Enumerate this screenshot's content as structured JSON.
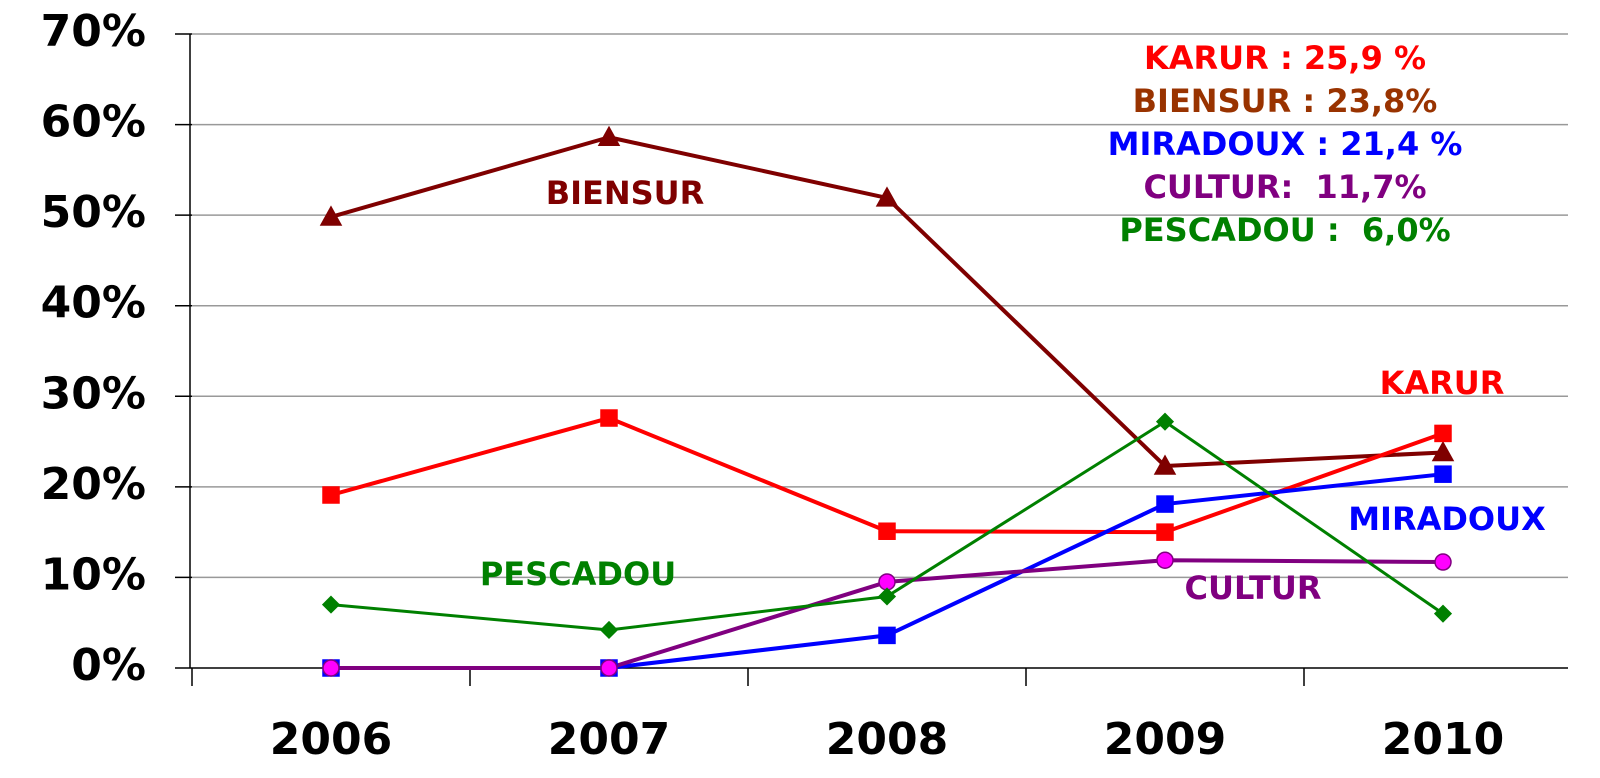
{
  "chart_data": {
    "type": "line",
    "categories": [
      "2006",
      "2007",
      "2008",
      "2009",
      "2010"
    ],
    "series": [
      {
        "name": "BIENSUR",
        "color": "#7f0000",
        "marker": "triangle",
        "marker_color": "#7f0000",
        "values": [
          49.8,
          58.6,
          51.9,
          22.3,
          23.8
        ]
      },
      {
        "name": "KARUR",
        "color": "#ff0000",
        "marker": "square",
        "marker_color": "#ff0000",
        "values": [
          19.1,
          27.6,
          15.1,
          15.0,
          25.9
        ]
      },
      {
        "name": "MIRADOUX",
        "color": "#0000ff",
        "marker": "square",
        "marker_color": "#0000ff",
        "values": [
          0,
          0,
          3.6,
          18.1,
          21.4
        ]
      },
      {
        "name": "CULTUR",
        "color": "#800080",
        "marker": "circle",
        "marker_color": "#ff00ff",
        "values": [
          0,
          0,
          9.5,
          11.9,
          11.7
        ]
      },
      {
        "name": "PESCADOU",
        "color": "#008000",
        "marker": "diamond",
        "marker_color": "#008000",
        "values": [
          7.0,
          4.2,
          7.9,
          27.2,
          6.0
        ]
      }
    ],
    "annotations": [
      {
        "text": "KARUR : 25,9 %",
        "color": "#ff0000"
      },
      {
        "text": "BIENSUR : 23,8%",
        "color": "#993300"
      },
      {
        "text": "MIRADOUX : 21,4 %",
        "color": "#0000ff"
      },
      {
        "text": "CULTUR:  11,7%",
        "color": "#800080"
      },
      {
        "text": "PESCADOU :  6,0%",
        "color": "#008000"
      }
    ],
    "ylim": [
      0,
      70
    ],
    "yticks": [
      {
        "value": 0,
        "label": "0%"
      },
      {
        "value": 10,
        "label": "10%"
      },
      {
        "value": 20,
        "label": "20%"
      },
      {
        "value": 30,
        "label": "30%"
      },
      {
        "value": 40,
        "label": "40%"
      },
      {
        "value": 50,
        "label": "50%"
      },
      {
        "value": 60,
        "label": "60%"
      },
      {
        "value": 70,
        "label": "70%"
      }
    ],
    "grid": true
  }
}
